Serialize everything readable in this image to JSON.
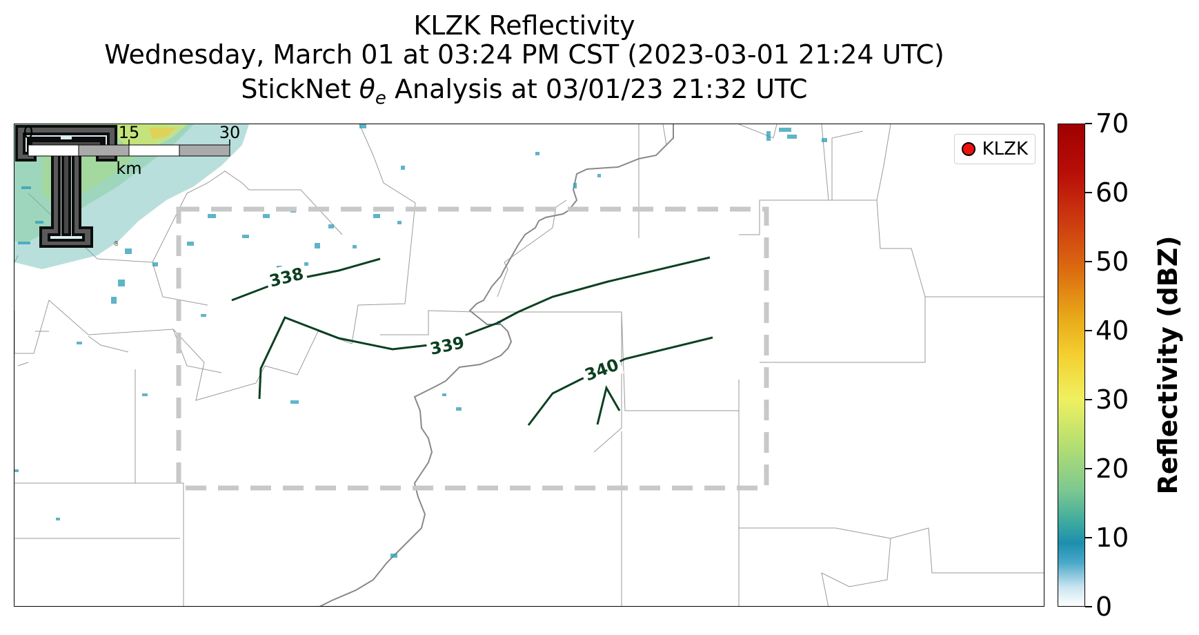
{
  "title": {
    "line1": "KLZK Reflectivity",
    "line2": "Wednesday, March 01 at 03:24 PM CST (2023-03-01 21:24 UTC)",
    "line3_prefix": "StickNet ",
    "line3_symbol": "θ",
    "line3_subscript": "e",
    "line3_suffix": " Analysis at 03/01/23 21:32 UTC"
  },
  "legend": {
    "label": "KLZK",
    "marker_color": "#ee1111"
  },
  "contours": [
    {
      "label": "338"
    },
    {
      "label": "339"
    },
    {
      "label": "340"
    }
  ],
  "contour_color": "#0b4020",
  "scalebar": {
    "ticks": [
      "0",
      "15",
      "30"
    ],
    "unit": "km"
  },
  "colorbar": {
    "title": "Reflectivity (dBZ)",
    "ticks": [
      "0",
      "10",
      "20",
      "30",
      "40",
      "50",
      "60",
      "70"
    ],
    "min": 0,
    "max": 70
  },
  "logo": {
    "name": "texas-tech-double-t-logo",
    "letters": "T"
  },
  "colors": {
    "domain_box": "#c8c8c8",
    "river": "#888888",
    "county_lines": "#9a9a9a"
  }
}
